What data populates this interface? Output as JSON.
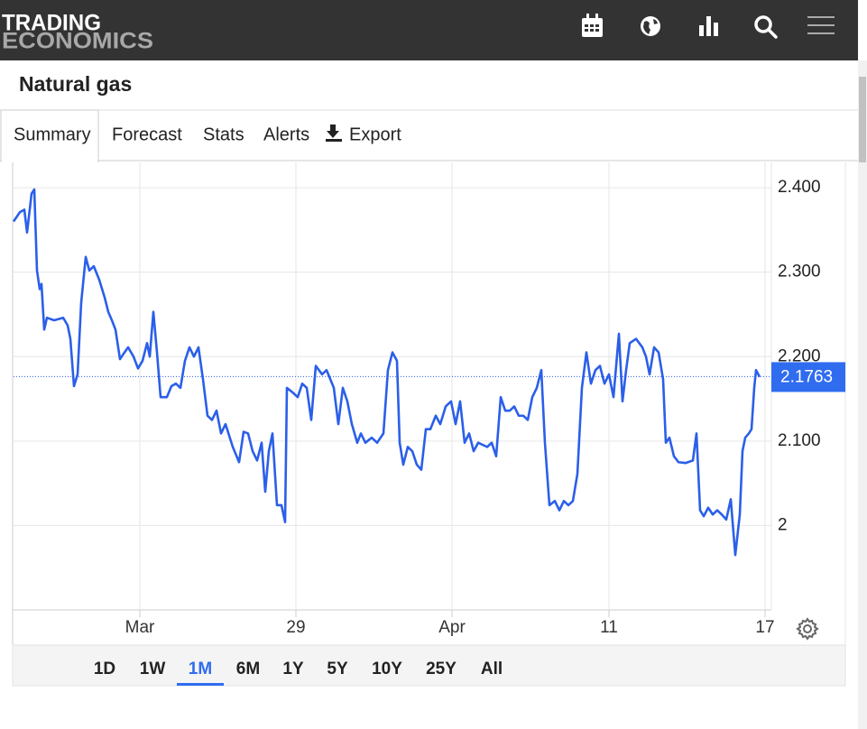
{
  "logo": {
    "line1": "TRADING",
    "line2": "ECONOMICS"
  },
  "page_title": "Natural gas",
  "tabs": [
    "Summary",
    "Forecast",
    "Stats",
    "Alerts",
    "Export"
  ],
  "active_tab": "Summary",
  "ranges": [
    "1D",
    "1W",
    "1M",
    "6M",
    "1Y",
    "5Y",
    "10Y",
    "25Y",
    "All"
  ],
  "active_range": "1M",
  "chart_data": {
    "type": "line",
    "color": "#2b5fe9",
    "x": [
      0,
      7,
      12,
      15,
      20,
      23,
      26,
      29,
      31,
      34,
      37,
      45,
      55,
      60,
      63,
      67,
      71,
      75,
      80,
      84,
      89,
      95,
      101,
      105,
      109,
      113,
      118,
      123,
      127,
      133,
      138,
      143,
      148,
      151,
      155,
      159,
      163,
      170,
      175,
      180,
      185,
      190,
      195,
      200,
      205,
      210,
      215,
      220,
      225,
      230,
      235,
      243,
      250,
      255,
      260,
      265,
      270,
      275,
      279,
      283,
      287,
      292,
      297,
      301,
      303,
      310,
      315,
      320,
      325,
      330,
      335,
      342,
      347,
      355,
      360,
      365,
      370,
      375,
      381,
      385,
      390,
      397,
      403,
      410,
      415,
      420,
      425,
      428,
      432,
      437,
      442,
      447,
      452,
      457,
      462,
      468,
      473,
      479,
      485,
      490,
      495,
      500,
      505,
      510,
      515,
      525,
      530,
      535,
      540,
      545,
      550,
      555,
      560,
      565,
      570,
      575,
      580,
      585,
      589,
      594,
      600,
      605,
      610,
      615,
      620,
      625,
      630,
      635,
      640,
      645,
      650,
      655,
      660,
      665,
      671,
      675,
      679,
      683,
      690,
      697,
      701,
      705,
      710,
      715,
      720,
      723,
      727,
      732,
      737,
      745,
      753,
      757,
      761,
      765,
      770,
      775,
      780,
      785,
      790,
      795,
      800,
      805,
      808,
      811,
      815,
      818,
      821,
      823,
      827
    ],
    "values": [
      2.36,
      2.371,
      2.374,
      2.347,
      2.393,
      2.398,
      2.302,
      2.28,
      2.286,
      2.232,
      2.246,
      2.243,
      2.246,
      2.237,
      2.221,
      2.165,
      2.179,
      2.264,
      2.318,
      2.302,
      2.307,
      2.291,
      2.27,
      2.253,
      2.243,
      2.232,
      2.197,
      2.205,
      2.211,
      2.2,
      2.186,
      2.195,
      2.216,
      2.2,
      2.253,
      2.205,
      2.152,
      2.152,
      2.165,
      2.168,
      2.163,
      2.195,
      2.211,
      2.2,
      2.211,
      2.173,
      2.13,
      2.125,
      2.136,
      2.109,
      2.12,
      2.093,
      2.075,
      2.111,
      2.109,
      2.088,
      2.077,
      2.098,
      2.04,
      2.088,
      2.109,
      2.024,
      2.024,
      2.004,
      2.163,
      2.157,
      2.152,
      2.168,
      2.163,
      2.125,
      2.189,
      2.179,
      2.184,
      2.163,
      2.12,
      2.163,
      2.147,
      2.12,
      2.098,
      2.109,
      2.098,
      2.104,
      2.098,
      2.109,
      2.184,
      2.205,
      2.195,
      2.098,
      2.072,
      2.093,
      2.088,
      2.072,
      2.066,
      2.114,
      2.114,
      2.13,
      2.12,
      2.141,
      2.147,
      2.12,
      2.147,
      2.098,
      2.109,
      2.088,
      2.098,
      2.093,
      2.098,
      2.082,
      2.152,
      2.136,
      2.136,
      2.141,
      2.13,
      2.13,
      2.125,
      2.152,
      2.163,
      2.184,
      2.098,
      2.024,
      2.029,
      2.018,
      2.029,
      2.024,
      2.029,
      2.061,
      2.163,
      2.205,
      2.168,
      2.184,
      2.189,
      2.168,
      2.179,
      2.152,
      2.227,
      2.147,
      2.184,
      2.216,
      2.221,
      2.211,
      2.2,
      2.179,
      2.211,
      2.205,
      2.173,
      2.098,
      2.104,
      2.082,
      2.075,
      2.074,
      2.077,
      2.109,
      2.018,
      2.011,
      2.021,
      2.013,
      2.018,
      2.013,
      2.007,
      2.031,
      1.965,
      2.013,
      2.088,
      2.104,
      2.109,
      2.114,
      2.163,
      2.184,
      2.176
    ],
    "last_value": 2.1763,
    "xlim": [
      0,
      840
    ],
    "xticks": [
      {
        "value": 140,
        "label": "Mar"
      },
      {
        "value": 313,
        "label": "29"
      },
      {
        "value": 486,
        "label": "Apr"
      },
      {
        "value": 660,
        "label": "11"
      },
      {
        "value": 833,
        "label": "17"
      }
    ],
    "ylim": [
      1.9,
      2.43
    ],
    "yticks": [
      {
        "value": 2.4,
        "label": "2.400"
      },
      {
        "value": 2.3,
        "label": "2.300"
      },
      {
        "value": 2.2,
        "label": "2.200"
      },
      {
        "value": 2.1,
        "label": "2.100"
      },
      2
    ],
    "grid": true
  }
}
